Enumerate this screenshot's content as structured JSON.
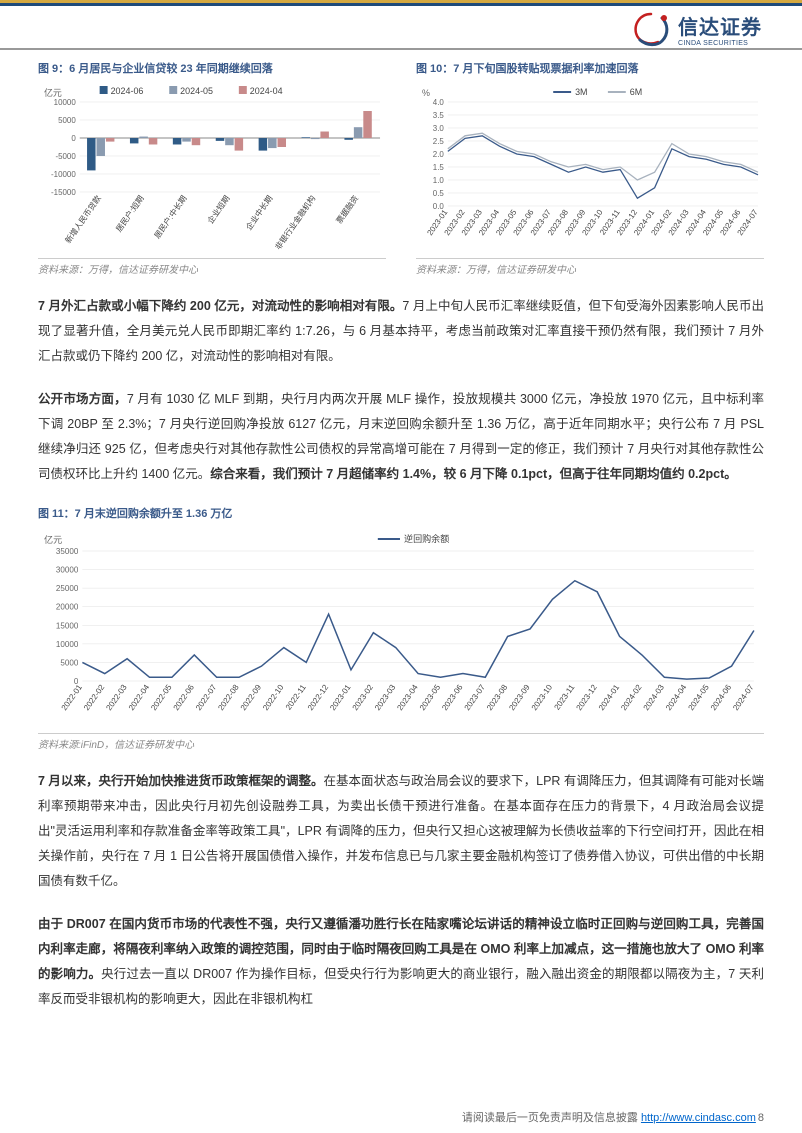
{
  "brand": {
    "cn": "信达证券",
    "en": "CINDA SECURITIES"
  },
  "chart9": {
    "title": "图 9：6 月居民与企业信贷较 23 年同期继续回落",
    "source": "资料来源：万得，信达证券研发中心",
    "ylabel": "亿元",
    "ylim": [
      -15000,
      10000
    ],
    "ytick_step": 5000,
    "yticks": [
      -15000,
      -10000,
      -5000,
      0,
      5000,
      10000
    ],
    "categories": [
      "新增人民币贷款",
      "居民户:短期",
      "居民户:中长期",
      "企业短期",
      "企业中长期",
      "非银行业金融机构",
      "票据融资"
    ],
    "series": [
      {
        "name": "2024-06",
        "color": "#2f5b86",
        "values": [
          -9000,
          -1500,
          -1800,
          -800,
          -3500,
          200,
          -500
        ]
      },
      {
        "name": "2024-05",
        "color": "#8a9bb0",
        "values": [
          -5000,
          400,
          -1000,
          -2000,
          -2800,
          -300,
          3000
        ]
      },
      {
        "name": "2024-04",
        "color": "#c88a8a",
        "values": [
          -1000,
          -1800,
          -2000,
          -3500,
          -2500,
          1800,
          7500
        ]
      }
    ],
    "bar_width": 0.22,
    "grid_color": "#e0e0e0",
    "background_color": "#ffffff",
    "label_fontsize": 8,
    "title_fontsize": 11
  },
  "chart10": {
    "title": "图 10：7 月下旬国股转贴现票据利率加速回落",
    "source": "资料来源：万得，信达证券研发中心",
    "ylabel": "%",
    "ylim": [
      0.0,
      4.0
    ],
    "ytick_step": 0.5,
    "yticks": [
      0.0,
      0.5,
      1.0,
      1.5,
      2.0,
      2.5,
      3.0,
      3.5,
      4.0
    ],
    "xlabels": [
      "2023-01",
      "2023-02",
      "2023-03",
      "2023-04",
      "2023-05",
      "2023-06",
      "2023-07",
      "2023-08",
      "2023-09",
      "2023-10",
      "2023-11",
      "2023-12",
      "2024-01",
      "2024-02",
      "2024-03",
      "2024-04",
      "2024-05",
      "2024-06",
      "2024-07"
    ],
    "series": [
      {
        "name": "3M",
        "color": "#3a5a8a",
        "values": [
          2.1,
          2.6,
          2.7,
          2.3,
          2.0,
          1.9,
          1.6,
          1.3,
          1.5,
          1.3,
          1.4,
          0.3,
          0.7,
          2.2,
          1.9,
          1.8,
          1.6,
          1.5,
          1.2
        ]
      },
      {
        "name": "6M",
        "color": "#a8b2be",
        "values": [
          2.2,
          2.7,
          2.8,
          2.4,
          2.1,
          2.0,
          1.7,
          1.5,
          1.6,
          1.4,
          1.5,
          1.0,
          1.3,
          2.4,
          2.0,
          1.9,
          1.7,
          1.6,
          1.3
        ]
      }
    ],
    "grid_color": "#e0e0e0",
    "line_width": 1.3,
    "background_color": "#ffffff",
    "label_fontsize": 8,
    "title_fontsize": 11
  },
  "para1": {
    "bold": "7 月外汇占款或小幅下降约 200 亿元，对流动性的影响相对有限。",
    "rest": "7 月上中旬人民币汇率继续贬值，但下旬受海外因素影响人民币出现了显著升值，全月美元兑人民币即期汇率约 1:7.26，与 6 月基本持平，考虑当前政策对汇率直接干预仍然有限，我们预计 7 月外汇占款或仍下降约 200 亿，对流动性的影响相对有限。"
  },
  "para2": {
    "bold1": "公开市场方面，",
    "mid": "7 月有 1030 亿 MLF 到期，央行月内两次开展 MLF 操作，投放规模共 3000 亿元，净投放 1970 亿元，且中标利率下调 20BP 至 2.3%；7 月央行逆回购净投放 6127 亿元，月末逆回购余额升至 1.36 万亿，高于近年同期水平；央行公布 7 月 PSL 继续净归还 925 亿，但考虑央行对其他存款性公司债权的异常高增可能在 7 月得到一定的修正，我们预计 7 月央行对其他存款性公司债权环比上升约 1400 亿元。",
    "bold2": "综合来看，我们预计 7 月超储率约 1.4%，较 6 月下降 0.1pct，但高于往年同期均值约 0.2pct。"
  },
  "chart11": {
    "title": "图 11：7 月末逆回购余额升至 1.36 万亿",
    "source": "资料来源:iFinD，信达证券研发中心",
    "ylabel": "亿元",
    "ylim": [
      0,
      35000
    ],
    "ytick_step": 5000,
    "yticks": [
      0,
      5000,
      10000,
      15000,
      20000,
      25000,
      30000,
      35000
    ],
    "legend_label": "逆回购余额",
    "xlabels": [
      "2022-01",
      "2022-02",
      "2022-03",
      "2022-04",
      "2022-05",
      "2022-06",
      "2022-07",
      "2022-08",
      "2022-09",
      "2022-10",
      "2022-11",
      "2022-12",
      "2023-01",
      "2023-02",
      "2023-03",
      "2023-04",
      "2023-05",
      "2023-06",
      "2023-07",
      "2023-08",
      "2023-09",
      "2023-10",
      "2023-11",
      "2023-12",
      "2024-01",
      "2024-02",
      "2024-03",
      "2024-04",
      "2024-05",
      "2024-06",
      "2024-07"
    ],
    "series": [
      {
        "name": "逆回购余额",
        "color": "#3a5a8a",
        "values": [
          5000,
          2000,
          6000,
          1000,
          1000,
          7000,
          1000,
          1000,
          4000,
          9000,
          5000,
          18000,
          3000,
          13000,
          9000,
          2000,
          1000,
          2000,
          1000,
          12000,
          14000,
          22000,
          27000,
          24000,
          12000,
          7000,
          1000,
          500,
          800,
          4000,
          13600
        ]
      }
    ],
    "grid_color": "#e0e0e0",
    "line_width": 1.5,
    "background_color": "#ffffff",
    "title_fontsize": 11
  },
  "para3": {
    "bold": "7 月以来，央行开始加快推进货币政策框架的调整。",
    "rest": "在基本面状态与政治局会议的要求下，LPR 有调降压力，但其调降有可能对长端利率预期带来冲击，因此央行月初先创设融券工具，为卖出长债干预进行准备。在基本面存在压力的背景下，4 月政治局会议提出\"灵活运用利率和存款准备金率等政策工具\"，LPR 有调降的压力，但央行又担心这被理解为长债收益率的下行空间打开，因此在相关操作前，央行在 7 月 1 日公告将开展国债借入操作，并发布信息已与几家主要金融机构签订了债券借入协议，可供出借的中长期国债有数千亿。"
  },
  "para4": {
    "bold": "由于 DR007 在国内货币市场的代表性不强，央行又遵循潘功胜行长在陆家嘴论坛讲话的精神设立临时正回购与逆回购工具，完善国内利率走廊，将隔夜利率纳入政策的调控范围，同时由于临时隔夜回购工具是在 OMO 利率上加减点，这一措施也放大了 OMO 利率的影响力。",
    "rest": "央行过去一直以 DR007 作为操作目标，但受央行行为影响更大的商业银行，融入融出资金的期限都以隔夜为主，7 天利率反而受非银机构的影响更大，因此在非银机构杠"
  },
  "footer": {
    "text": "请阅读最后一页免责声明及信息披露",
    "url": "http://www.cindasc.com",
    "page": "8"
  }
}
